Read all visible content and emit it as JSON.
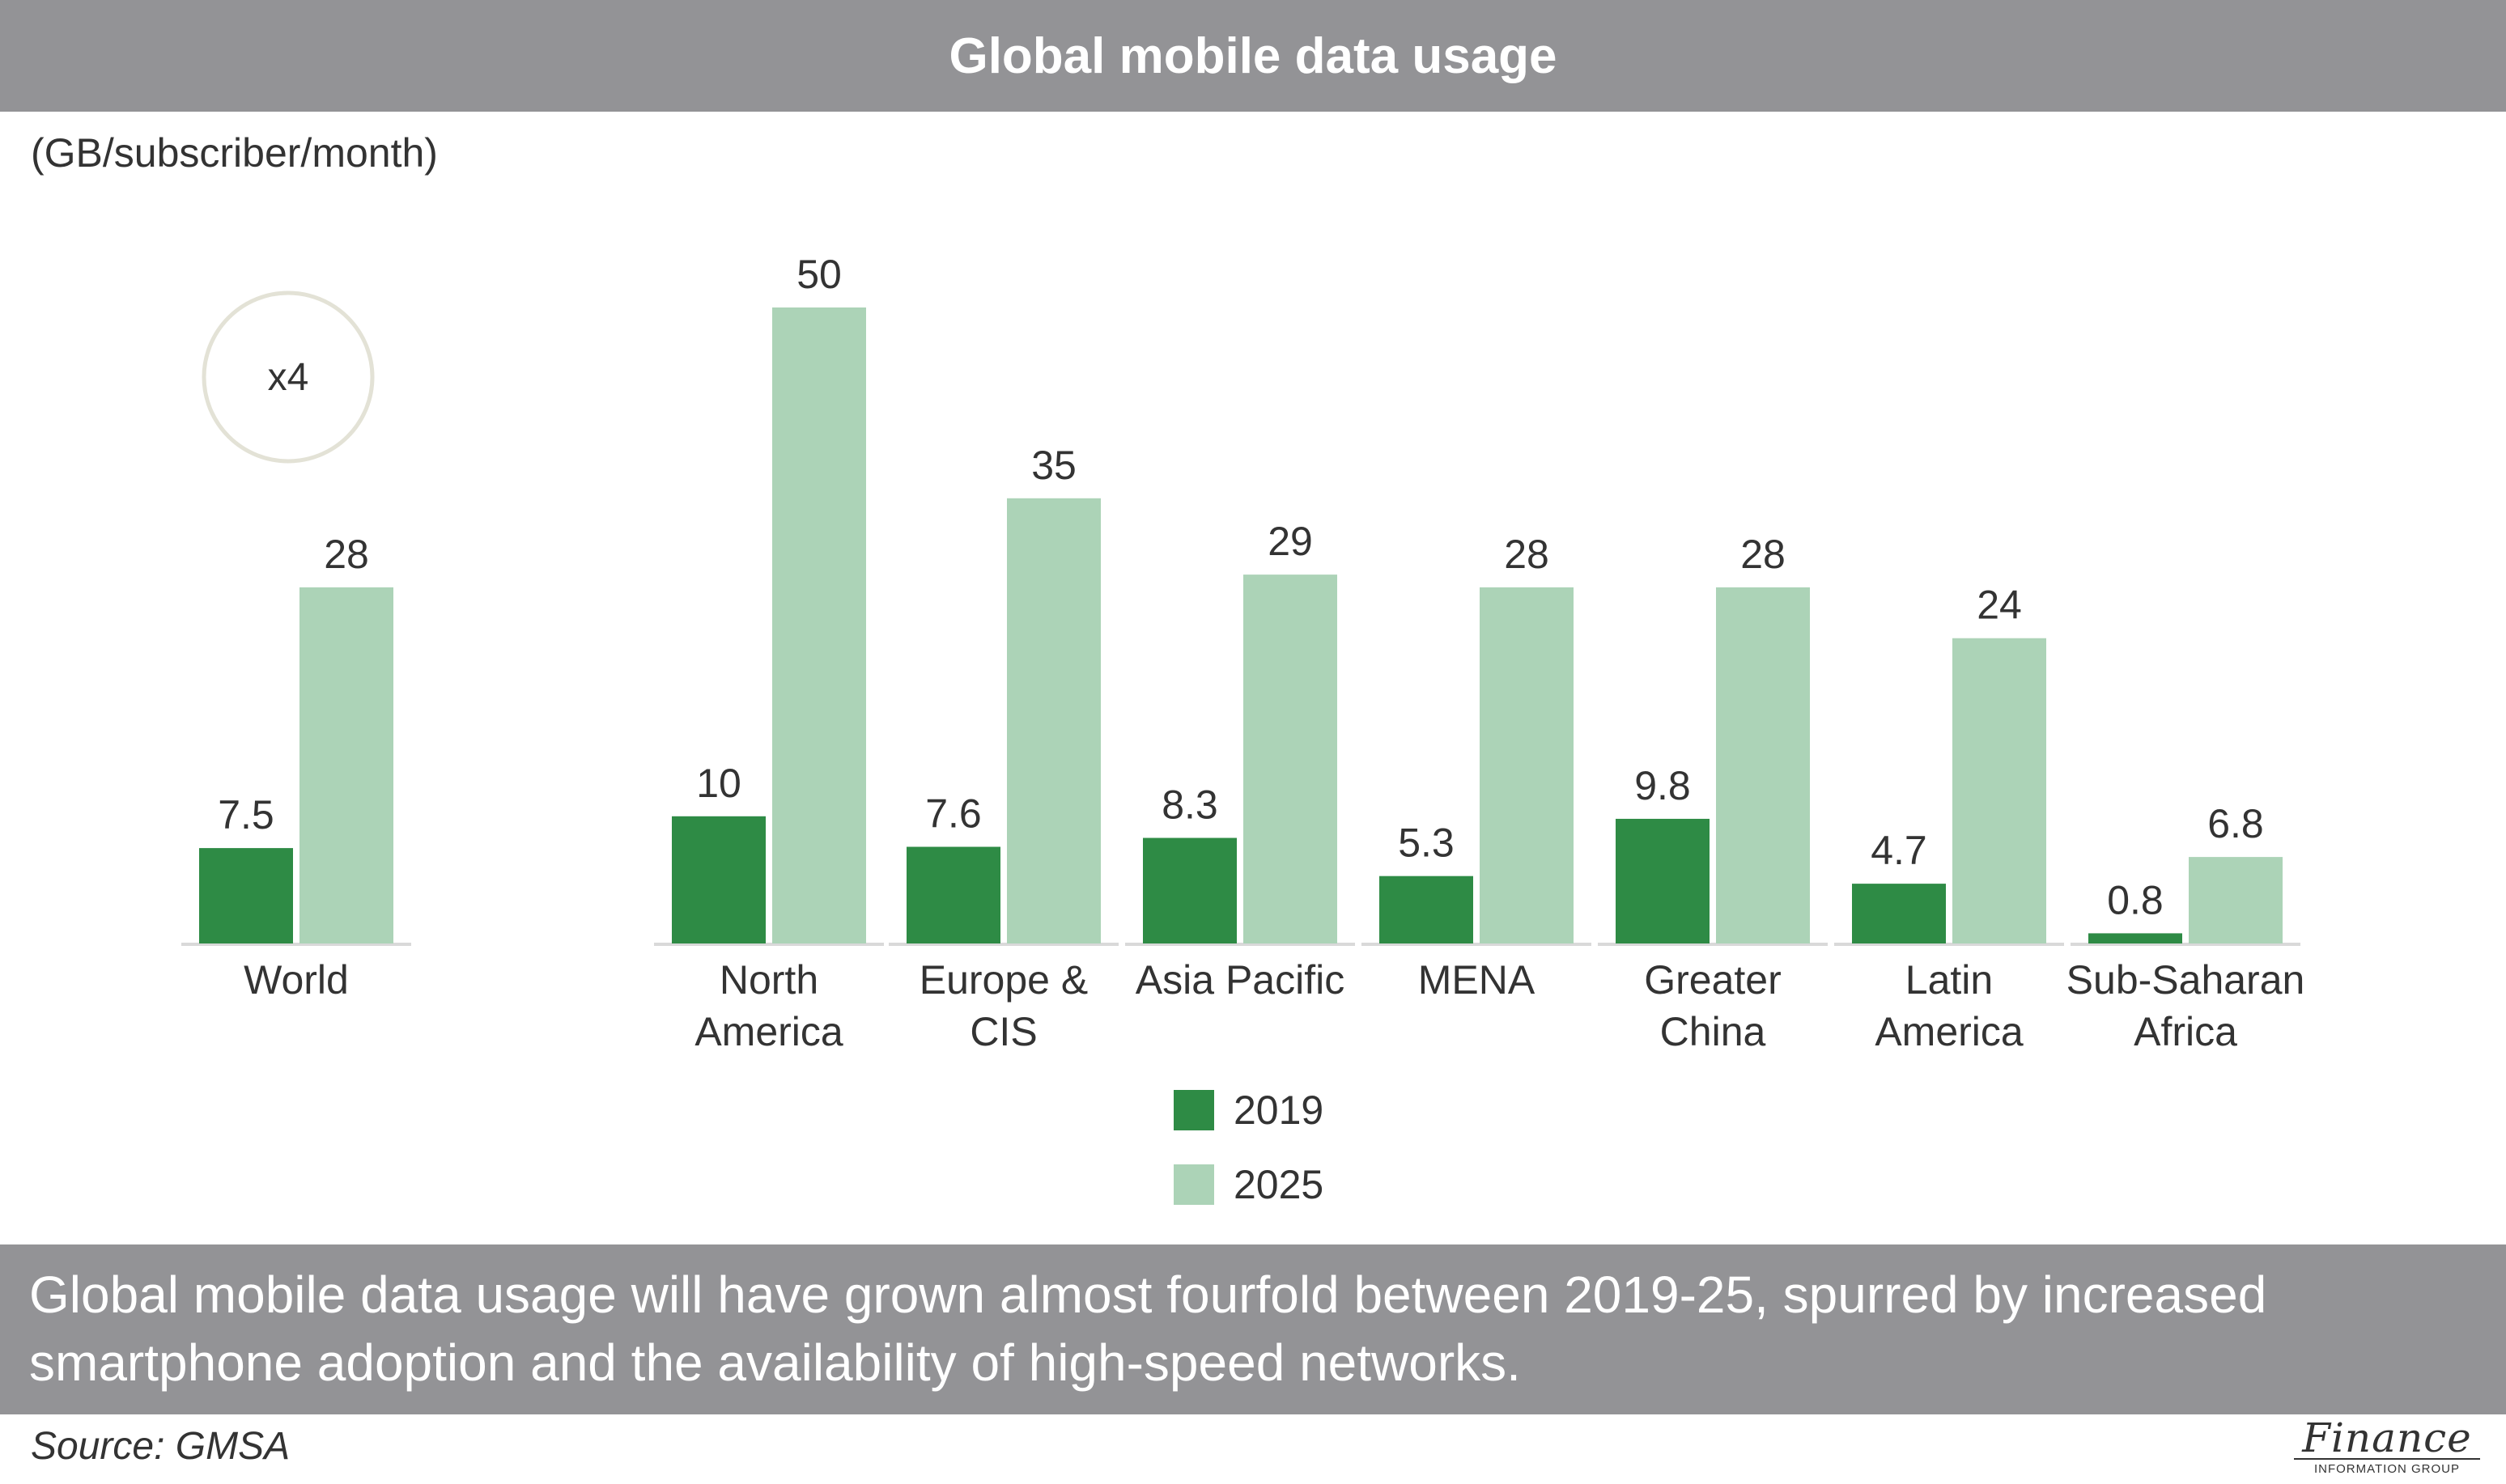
{
  "header": {
    "title": "Global mobile data usage"
  },
  "unit_label": "(GB/subscriber/month)",
  "annotation": "x4",
  "caption": "Global mobile data usage will have grown almost fourfold between 2019-25, spurred by increased smartphone adoption and the availability of high-speed networks.",
  "source": "Source: GMSA",
  "logo": {
    "main": "Finance",
    "sub": "INFORMATION GROUP"
  },
  "colors": {
    "series_2019": "#2e8b45",
    "series_2025": "#acd3b7",
    "bars_bg": "#939396"
  },
  "chart_data": {
    "type": "bar",
    "title": "Global mobile data usage",
    "ylabel": "(GB/subscriber/month)",
    "ylim": [
      0,
      50
    ],
    "grid": false,
    "legend_position": "bottom-center",
    "groups": [
      {
        "label_lines": [
          "World"
        ],
        "values": [
          7.5,
          28
        ],
        "labels": [
          "7.5",
          "28"
        ]
      },
      {
        "label_lines": [
          "North",
          "America"
        ],
        "values": [
          10,
          50
        ],
        "labels": [
          "10",
          "50"
        ]
      },
      {
        "label_lines": [
          "Europe &",
          "CIS"
        ],
        "values": [
          7.6,
          35
        ],
        "labels": [
          "7.6",
          "35"
        ]
      },
      {
        "label_lines": [
          "Asia Pacific"
        ],
        "values": [
          8.3,
          29
        ],
        "labels": [
          "8.3",
          "29"
        ]
      },
      {
        "label_lines": [
          "MENA"
        ],
        "values": [
          5.3,
          28
        ],
        "labels": [
          "5.3",
          "28"
        ]
      },
      {
        "label_lines": [
          "Greater",
          "China"
        ],
        "values": [
          9.8,
          28
        ],
        "labels": [
          "9.8",
          "28"
        ]
      },
      {
        "label_lines": [
          "Latin",
          "America"
        ],
        "values": [
          4.7,
          24
        ],
        "labels": [
          "4.7",
          "24"
        ]
      },
      {
        "label_lines": [
          "Sub-Saharan",
          "Africa"
        ],
        "values": [
          0.8,
          6.8
        ],
        "labels": [
          "0.8",
          "6.8"
        ]
      }
    ],
    "series": [
      {
        "name": "2019",
        "color": "#2e8b45"
      },
      {
        "name": "2025",
        "color": "#acd3b7"
      }
    ]
  }
}
